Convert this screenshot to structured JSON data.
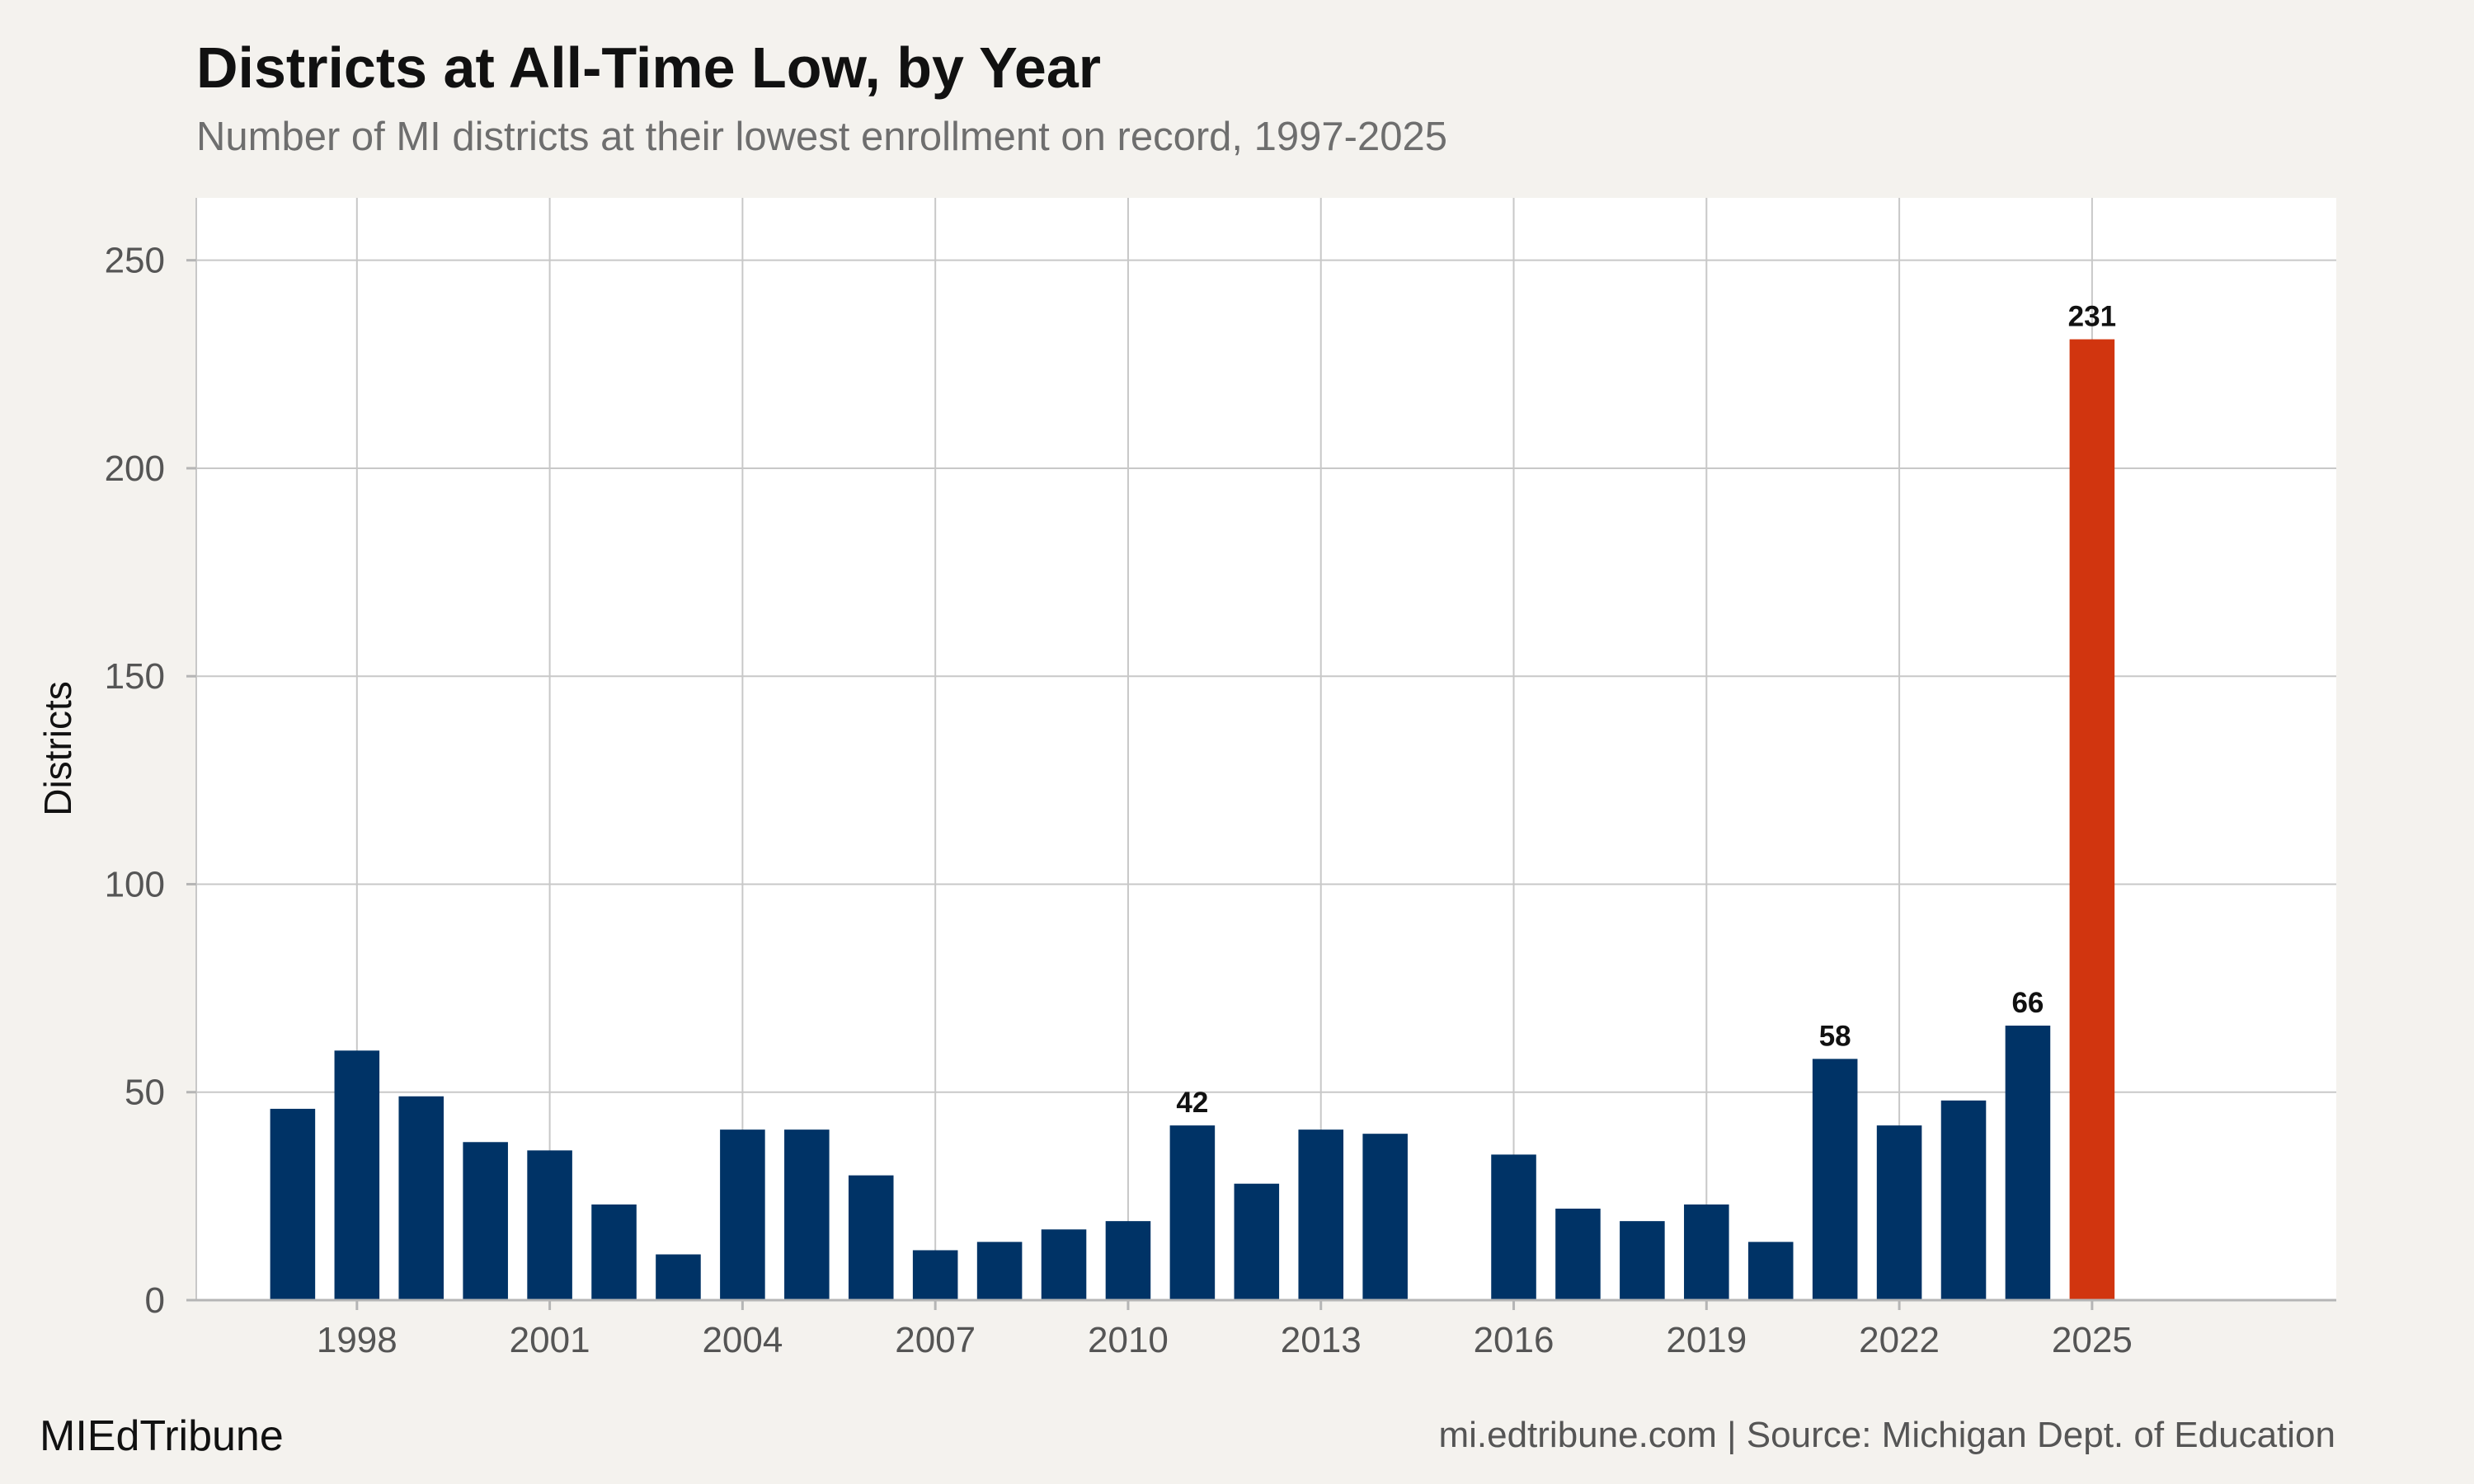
{
  "title": "Districts at All-Time Low, by Year",
  "subtitle": "Number of MI districts at their lowest enrollment on record, 1997-2025",
  "footer": {
    "brand": "MIEdTribune",
    "source": "mi.edtribune.com | Source: Michigan Dept. of Education"
  },
  "colors": {
    "bar": "#003366",
    "highlight": "#d1350f",
    "panel": "#ffffff",
    "background": "#f4f2ee",
    "grid": "#c8c8c8"
  },
  "chart_data": {
    "type": "bar",
    "ylabel": "Districts",
    "xlabel": "",
    "ylim": [
      0,
      265
    ],
    "xlim": [
      1995.5,
      2028.8
    ],
    "y_ticks": [
      0,
      50,
      100,
      150,
      200,
      250
    ],
    "x_ticks": [
      1998,
      2001,
      2004,
      2007,
      2010,
      2013,
      2016,
      2019,
      2022,
      2025
    ],
    "grid": true,
    "highlight_year": 2025,
    "labeled_years": [
      2011,
      2021,
      2024,
      2025
    ],
    "x": [
      1997,
      1998,
      1999,
      2000,
      2001,
      2002,
      2003,
      2004,
      2005,
      2006,
      2007,
      2008,
      2009,
      2010,
      2011,
      2012,
      2013,
      2014,
      2016,
      2017,
      2018,
      2019,
      2020,
      2021,
      2022,
      2023,
      2024,
      2025
    ],
    "values": [
      46,
      60,
      49,
      38,
      36,
      23,
      11,
      41,
      41,
      30,
      12,
      14,
      17,
      19,
      42,
      28,
      41,
      40,
      35,
      22,
      19,
      23,
      14,
      58,
      42,
      48,
      66,
      231
    ]
  }
}
